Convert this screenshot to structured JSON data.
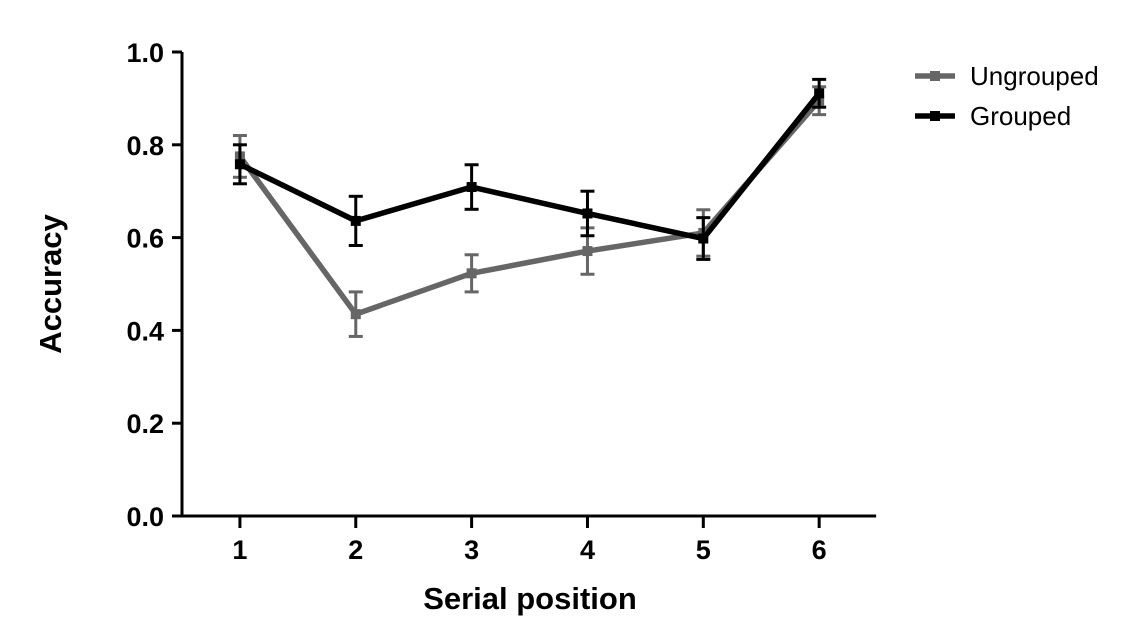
{
  "chart_data": {
    "type": "line",
    "xlabel": "Serial position",
    "ylabel": "Accuracy",
    "x": [
      1,
      2,
      3,
      4,
      5,
      6
    ],
    "xlim": [
      0.5,
      7.0
    ],
    "ylim": [
      0.0,
      1.0
    ],
    "y_ticks": [
      "0.0",
      "0.2",
      "0.4",
      "0.6",
      "0.8",
      "1.0"
    ],
    "x_ticks": [
      "1",
      "2",
      "3",
      "4",
      "5",
      "6"
    ],
    "grid": false,
    "legend_position": "top-right",
    "series": [
      {
        "name": "Ungrouped",
        "color": "#666666",
        "values": [
          0.775,
          0.435,
          0.523,
          0.571,
          0.61,
          0.895
        ],
        "errors": [
          0.045,
          0.048,
          0.04,
          0.05,
          0.05,
          0.03
        ]
      },
      {
        "name": "Grouped",
        "color": "#000000",
        "values": [
          0.758,
          0.636,
          0.709,
          0.652,
          0.598,
          0.911
        ],
        "errors": [
          0.042,
          0.053,
          0.048,
          0.048,
          0.045,
          0.03
        ]
      }
    ]
  }
}
